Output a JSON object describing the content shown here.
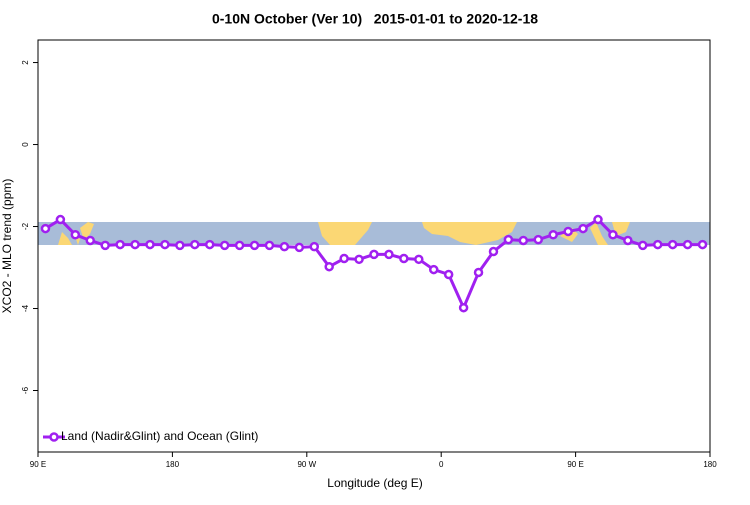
{
  "chart_data": {
    "type": "line",
    "title": "0-10N October (Ver 10)   2015-01-01 to 2020-12-18",
    "x_label": "Longitude (deg E)",
    "y_label": "XCO2 - MLO trend (ppm)",
    "x": [
      95,
      105,
      115,
      125,
      135,
      145,
      155,
      165,
      175,
      185,
      195,
      205,
      215,
      225,
      235,
      245,
      255,
      265,
      275,
      285,
      295,
      305,
      315,
      325,
      335,
      345,
      355,
      365,
      375,
      385,
      395,
      405,
      415,
      425,
      435,
      445,
      455,
      465,
      475,
      485,
      495,
      505,
      515,
      525,
      535
    ],
    "series": [
      {
        "name": "Land (Nadir&Glint) and Ocean (Glint)",
        "color": "#a020f0",
        "values": [
          -2.05,
          -1.83,
          -2.2,
          -2.34,
          -2.46,
          -2.44,
          -2.44,
          -2.44,
          -2.44,
          -2.46,
          -2.44,
          -2.44,
          -2.46,
          -2.46,
          -2.46,
          -2.46,
          -2.49,
          -2.51,
          -2.49,
          -2.98,
          -2.78,
          -2.8,
          -2.68,
          -2.68,
          -2.78,
          -2.8,
          -3.05,
          -3.17,
          -3.98,
          -3.12,
          -2.61,
          -2.32,
          -2.34,
          -2.32,
          -2.2,
          -2.12,
          -2.05,
          -1.83,
          -2.2,
          -2.34,
          -2.46,
          -2.44,
          -2.44,
          -2.44,
          -2.44
        ]
      }
    ],
    "xlim": [
      90,
      540
    ],
    "xticks": [
      {
        "value": 90,
        "label": "90 E"
      },
      {
        "value": 180,
        "label": "180"
      },
      {
        "value": 270,
        "label": "90 W"
      },
      {
        "value": 360,
        "label": "0"
      },
      {
        "value": 450,
        "label": "90 E"
      },
      {
        "value": 540,
        "label": "180"
      }
    ],
    "ylim": [
      -7.5,
      2.55
    ],
    "yticks": [
      -6,
      -4,
      -2,
      0,
      2
    ],
    "legend": "bottomleft"
  }
}
